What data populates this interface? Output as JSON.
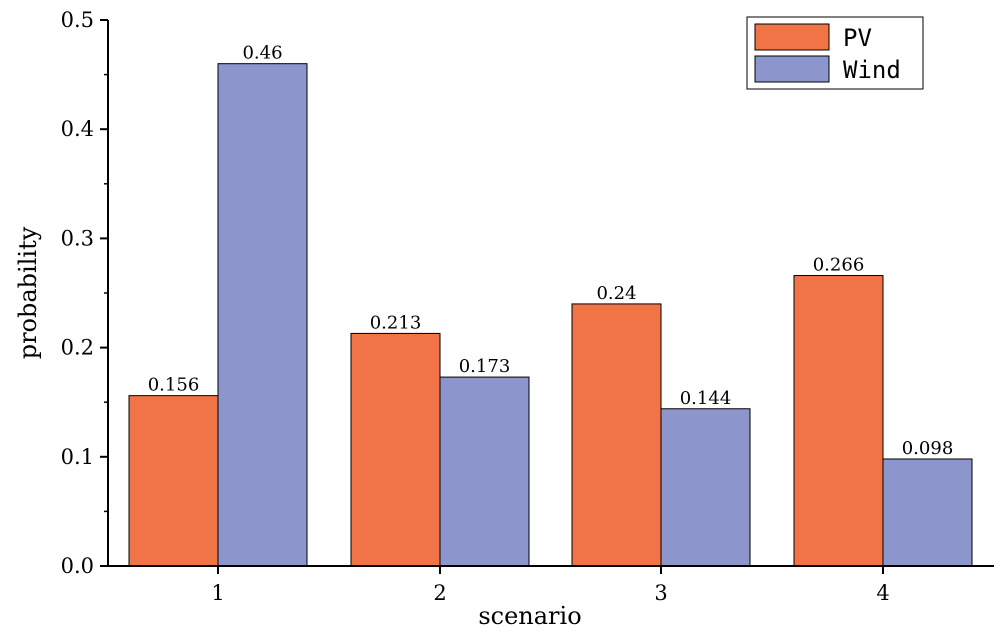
{
  "chart_data": {
    "type": "bar",
    "xlabel": "scenario",
    "ylabel": "probability",
    "categories": [
      "1",
      "2",
      "3",
      "4"
    ],
    "ylim": [
      0,
      0.5
    ],
    "yticks": [
      "0.0",
      "0.1",
      "0.2",
      "0.3",
      "0.4",
      "0.5"
    ],
    "grid": false,
    "legend_position": "top-right",
    "series": [
      {
        "name": "PV",
        "color": "#f07446",
        "values": [
          0.156,
          0.213,
          0.24,
          0.266
        ],
        "labels": [
          "0.156",
          "0.213",
          "0.24",
          "0.266"
        ]
      },
      {
        "name": "Wind",
        "color": "#8c96cc",
        "values": [
          0.46,
          0.173,
          0.144,
          0.098
        ],
        "labels": [
          "0.46",
          "0.173",
          "0.144",
          "0.098"
        ]
      }
    ]
  }
}
